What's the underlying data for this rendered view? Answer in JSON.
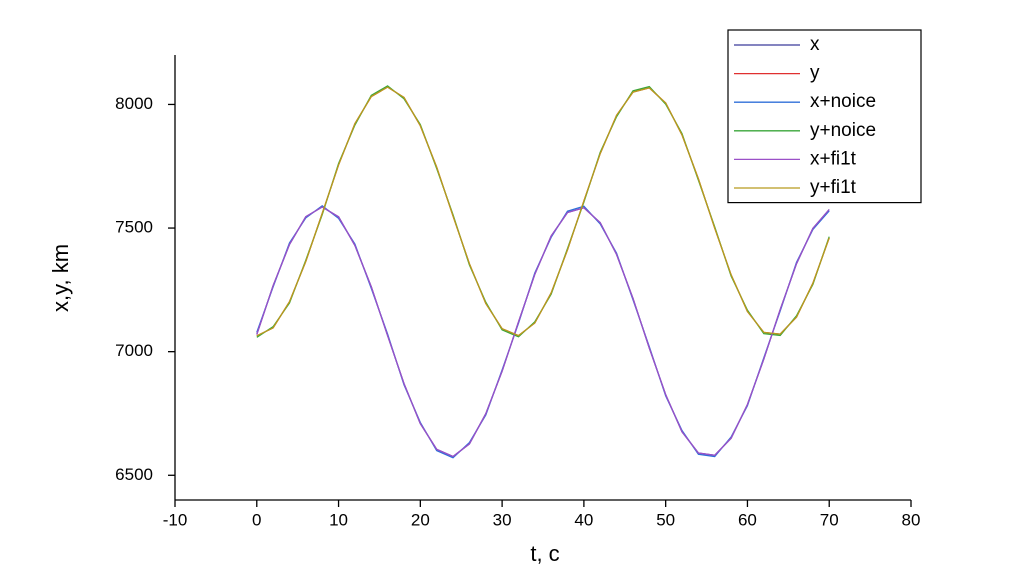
{
  "chart_data": {
    "type": "line",
    "x_label": "t, c",
    "y_label": "x,y, km",
    "x": [
      0,
      2,
      4,
      6,
      8,
      10,
      12,
      14,
      16,
      18,
      20,
      22,
      24,
      26,
      28,
      30,
      32,
      34,
      36,
      38,
      40,
      42,
      44,
      46,
      48,
      50,
      52,
      54,
      56,
      58,
      60,
      62,
      64,
      66,
      68,
      70
    ],
    "series": [
      {
        "name": "x",
        "color": "#3a3a9a",
        "values": [
          7070,
          7267,
          7434,
          7546,
          7585,
          7545,
          7430,
          7262,
          7065,
          6871,
          6709,
          6605,
          6576,
          6627,
          6749,
          6921,
          7120,
          7313,
          7468,
          7563,
          7582,
          7522,
          7393,
          7215,
          7015,
          6826,
          6676,
          6590,
          6581,
          6650,
          6786,
          6970,
          7170,
          7356,
          7499,
          7575
        ]
      },
      {
        "name": "y",
        "color": "#e03030",
        "values": [
          7064,
          7096,
          7202,
          7365,
          7559,
          7756,
          7922,
          8032,
          8070,
          8028,
          7914,
          7746,
          7549,
          7356,
          7195,
          7093,
          7065,
          7116,
          7238,
          7412,
          7610,
          7801,
          7956,
          8050,
          8067,
          8006,
          7877,
          7699,
          7500,
          7311,
          7163,
          7078,
          7071,
          7140,
          7277,
          7460
        ]
      },
      {
        "name": "x+noice",
        "color": "#2f6fd8",
        "values": [
          7078,
          7262,
          7440,
          7541,
          7590,
          7539,
          7435,
          7256,
          7071,
          6866,
          6714,
          6600,
          6571,
          6632,
          6744,
          6926,
          7115,
          7318,
          7463,
          7568,
          7588,
          7517,
          7398,
          7210,
          7020,
          6821,
          6681,
          6585,
          6576,
          6655,
          6781,
          6975,
          7165,
          7361,
          7494,
          7570
        ]
      },
      {
        "name": "y+noice",
        "color": "#3aa63a",
        "values": [
          7058,
          7101,
          7197,
          7370,
          7554,
          7761,
          7917,
          8037,
          8075,
          8023,
          7919,
          7741,
          7554,
          7351,
          7200,
          7088,
          7060,
          7121,
          7233,
          7417,
          7605,
          7806,
          7951,
          8055,
          8072,
          8001,
          7882,
          7694,
          7505,
          7306,
          7168,
          7073,
          7066,
          7145,
          7272,
          7465
        ]
      },
      {
        "name": "x+fi1t",
        "color": "#9b50c8",
        "values": [
          7070,
          7267,
          7434,
          7546,
          7585,
          7545,
          7430,
          7262,
          7065,
          6871,
          6709,
          6605,
          6576,
          6627,
          6749,
          6921,
          7120,
          7313,
          7468,
          7563,
          7582,
          7522,
          7393,
          7215,
          7015,
          6826,
          6676,
          6590,
          6581,
          6650,
          6786,
          6970,
          7170,
          7356,
          7499,
          7575
        ]
      },
      {
        "name": "y+fi1t",
        "color": "#b89a1e",
        "values": [
          7064,
          7096,
          7202,
          7365,
          7559,
          7756,
          7922,
          8032,
          8070,
          8028,
          7914,
          7746,
          7549,
          7356,
          7195,
          7093,
          7065,
          7116,
          7238,
          7412,
          7610,
          7801,
          7956,
          8050,
          8067,
          8006,
          7877,
          7699,
          7500,
          7311,
          7163,
          7078,
          7071,
          7140,
          7277,
          7460
        ]
      }
    ],
    "xlim": [
      -10,
      80
    ],
    "xticks": [
      -10,
      0,
      10,
      20,
      30,
      40,
      50,
      60,
      70,
      80
    ],
    "ylim": [
      6400,
      8200
    ],
    "yticks": [
      6500,
      7000,
      7500,
      8000
    ],
    "legend": "top-right"
  }
}
